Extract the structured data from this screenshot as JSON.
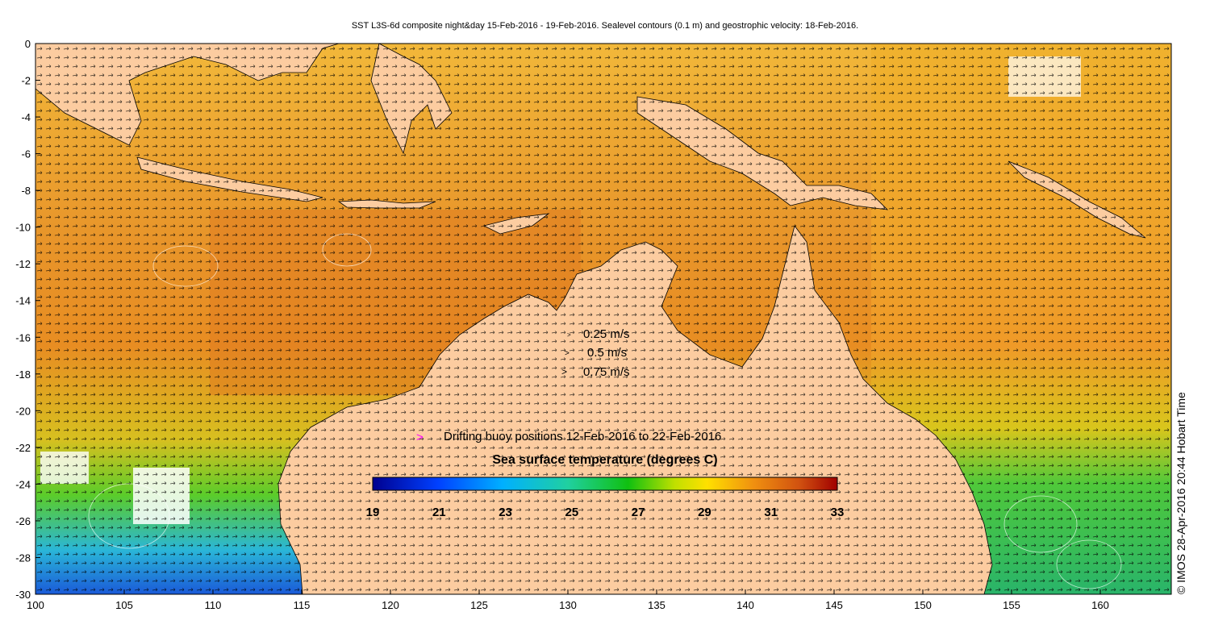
{
  "title": "SST L3S-6d composite night&day 15-Feb-2016 - 19-Feb-2016. Sealevel contours (0.1 m) and geostrophic velocity: 18-Feb-2016.",
  "map": {
    "x_ticks": [
      "100",
      "105",
      "110",
      "115",
      "120",
      "125",
      "130",
      "135",
      "140",
      "145",
      "150",
      "155",
      "160"
    ],
    "y_ticks": [
      "0",
      "-2",
      "-4",
      "-6",
      "-8",
      "-10",
      "-12",
      "-14",
      "-16",
      "-18",
      "-20",
      "-22",
      "-24",
      "-26",
      "-28",
      "-30"
    ],
    "lon_range": [
      100,
      164
    ],
    "lat_range": [
      -30,
      0
    ],
    "land_color": "#fccca0",
    "ocean_color": "#f0a030"
  },
  "velocity_legend": {
    "items": [
      "0.25 m/s",
      "0.5 m/s",
      "0.75 m/s"
    ]
  },
  "buoy_legend": {
    "marker": ">",
    "label": "Drifting buoy positions 12-Feb-2016 to 22-Feb-2016",
    "marker_color": "#ff00ff"
  },
  "colorbar": {
    "title": "Sea surface temperature (degrees C)",
    "ticks": [
      "19",
      "21",
      "23",
      "25",
      "27",
      "29",
      "31",
      "33"
    ],
    "range": [
      19,
      33
    ]
  },
  "credit": "© IMOS 28-Apr-2016 20:44 Hobart Time"
}
